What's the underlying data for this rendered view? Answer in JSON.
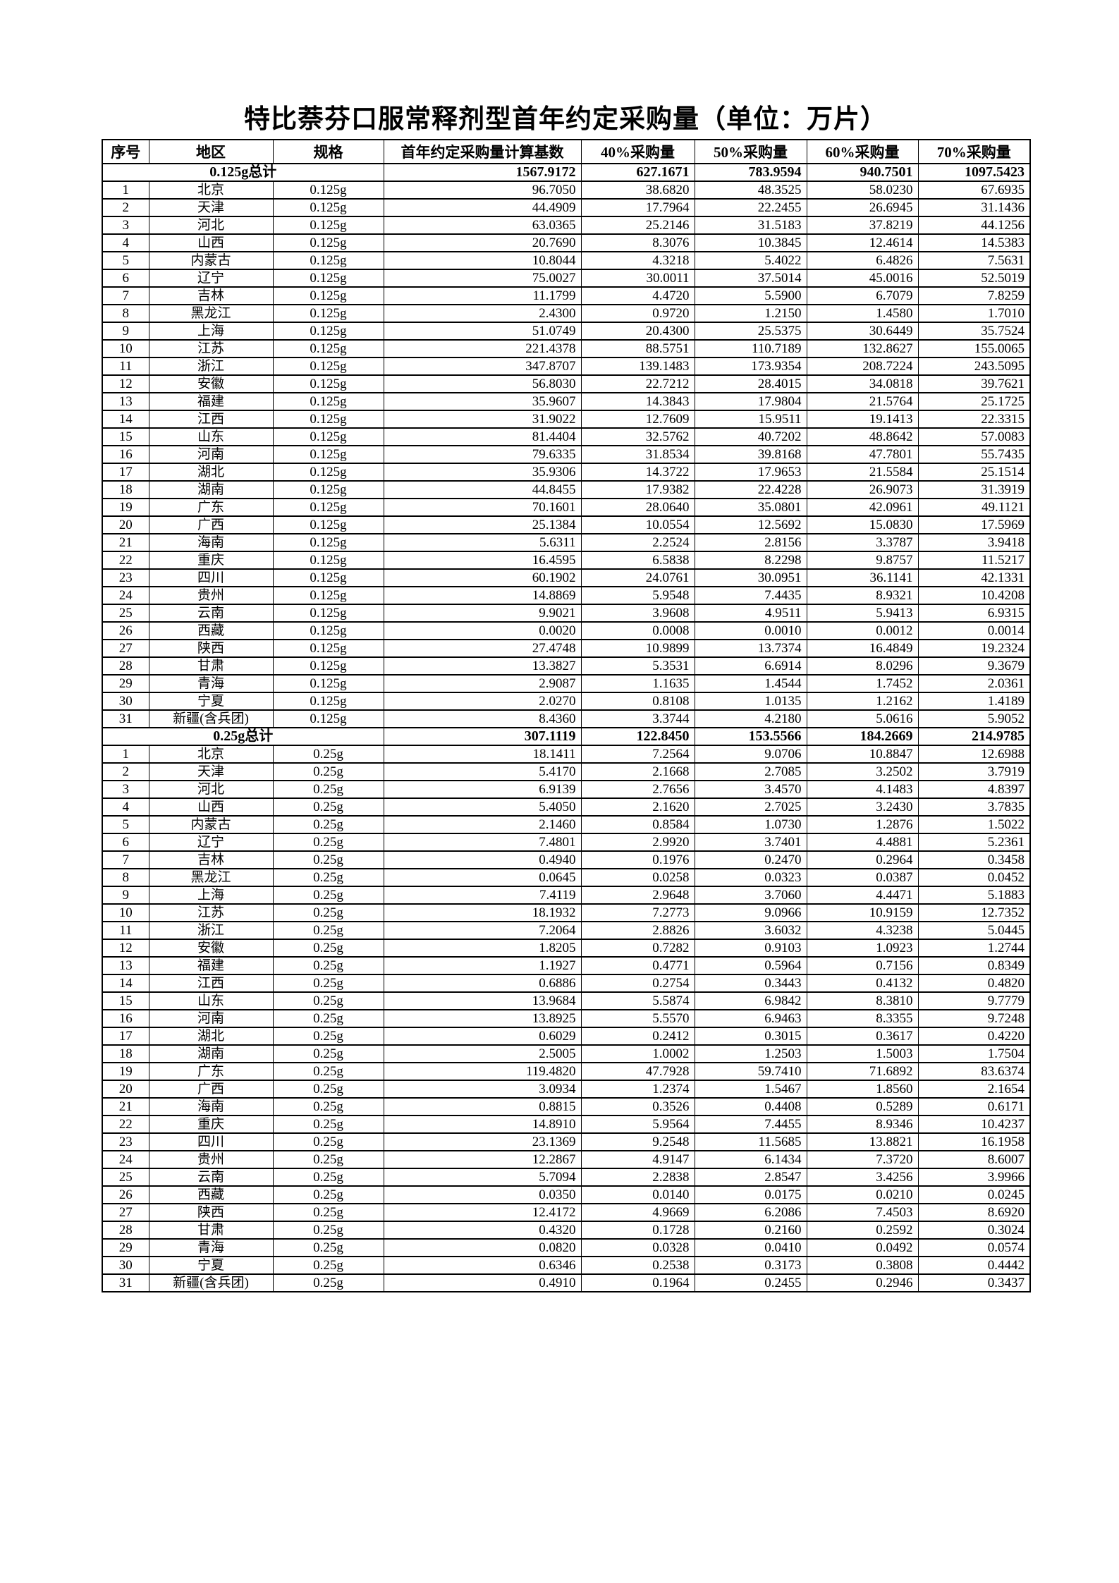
{
  "title": "特比萘芬口服常释剂型首年约定采购量（单位：万片）",
  "table": {
    "columns": [
      "序号",
      "地区",
      "规格",
      "首年约定采购量计算基数",
      "40%采购量",
      "50%采购量",
      "60%采购量",
      "70%采购量"
    ],
    "sections": [
      {
        "summary_label": "0.125g总计",
        "summary_values": [
          "1567.9172",
          "627.1671",
          "783.9594",
          "940.7501",
          "1097.5423"
        ],
        "rows": [
          [
            "1",
            "北京",
            "0.125g",
            "96.7050",
            "38.6820",
            "48.3525",
            "58.0230",
            "67.6935"
          ],
          [
            "2",
            "天津",
            "0.125g",
            "44.4909",
            "17.7964",
            "22.2455",
            "26.6945",
            "31.1436"
          ],
          [
            "3",
            "河北",
            "0.125g",
            "63.0365",
            "25.2146",
            "31.5183",
            "37.8219",
            "44.1256"
          ],
          [
            "4",
            "山西",
            "0.125g",
            "20.7690",
            "8.3076",
            "10.3845",
            "12.4614",
            "14.5383"
          ],
          [
            "5",
            "内蒙古",
            "0.125g",
            "10.8044",
            "4.3218",
            "5.4022",
            "6.4826",
            "7.5631"
          ],
          [
            "6",
            "辽宁",
            "0.125g",
            "75.0027",
            "30.0011",
            "37.5014",
            "45.0016",
            "52.5019"
          ],
          [
            "7",
            "吉林",
            "0.125g",
            "11.1799",
            "4.4720",
            "5.5900",
            "6.7079",
            "7.8259"
          ],
          [
            "8",
            "黑龙江",
            "0.125g",
            "2.4300",
            "0.9720",
            "1.2150",
            "1.4580",
            "1.7010"
          ],
          [
            "9",
            "上海",
            "0.125g",
            "51.0749",
            "20.4300",
            "25.5375",
            "30.6449",
            "35.7524"
          ],
          [
            "10",
            "江苏",
            "0.125g",
            "221.4378",
            "88.5751",
            "110.7189",
            "132.8627",
            "155.0065"
          ],
          [
            "11",
            "浙江",
            "0.125g",
            "347.8707",
            "139.1483",
            "173.9354",
            "208.7224",
            "243.5095"
          ],
          [
            "12",
            "安徽",
            "0.125g",
            "56.8030",
            "22.7212",
            "28.4015",
            "34.0818",
            "39.7621"
          ],
          [
            "13",
            "福建",
            "0.125g",
            "35.9607",
            "14.3843",
            "17.9804",
            "21.5764",
            "25.1725"
          ],
          [
            "14",
            "江西",
            "0.125g",
            "31.9022",
            "12.7609",
            "15.9511",
            "19.1413",
            "22.3315"
          ],
          [
            "15",
            "山东",
            "0.125g",
            "81.4404",
            "32.5762",
            "40.7202",
            "48.8642",
            "57.0083"
          ],
          [
            "16",
            "河南",
            "0.125g",
            "79.6335",
            "31.8534",
            "39.8168",
            "47.7801",
            "55.7435"
          ],
          [
            "17",
            "湖北",
            "0.125g",
            "35.9306",
            "14.3722",
            "17.9653",
            "21.5584",
            "25.1514"
          ],
          [
            "18",
            "湖南",
            "0.125g",
            "44.8455",
            "17.9382",
            "22.4228",
            "26.9073",
            "31.3919"
          ],
          [
            "19",
            "广东",
            "0.125g",
            "70.1601",
            "28.0640",
            "35.0801",
            "42.0961",
            "49.1121"
          ],
          [
            "20",
            "广西",
            "0.125g",
            "25.1384",
            "10.0554",
            "12.5692",
            "15.0830",
            "17.5969"
          ],
          [
            "21",
            "海南",
            "0.125g",
            "5.6311",
            "2.2524",
            "2.8156",
            "3.3787",
            "3.9418"
          ],
          [
            "22",
            "重庆",
            "0.125g",
            "16.4595",
            "6.5838",
            "8.2298",
            "9.8757",
            "11.5217"
          ],
          [
            "23",
            "四川",
            "0.125g",
            "60.1902",
            "24.0761",
            "30.0951",
            "36.1141",
            "42.1331"
          ],
          [
            "24",
            "贵州",
            "0.125g",
            "14.8869",
            "5.9548",
            "7.4435",
            "8.9321",
            "10.4208"
          ],
          [
            "25",
            "云南",
            "0.125g",
            "9.9021",
            "3.9608",
            "4.9511",
            "5.9413",
            "6.9315"
          ],
          [
            "26",
            "西藏",
            "0.125g",
            "0.0020",
            "0.0008",
            "0.0010",
            "0.0012",
            "0.0014"
          ],
          [
            "27",
            "陕西",
            "0.125g",
            "27.4748",
            "10.9899",
            "13.7374",
            "16.4849",
            "19.2324"
          ],
          [
            "28",
            "甘肃",
            "0.125g",
            "13.3827",
            "5.3531",
            "6.6914",
            "8.0296",
            "9.3679"
          ],
          [
            "29",
            "青海",
            "0.125g",
            "2.9087",
            "1.1635",
            "1.4544",
            "1.7452",
            "2.0361"
          ],
          [
            "30",
            "宁夏",
            "0.125g",
            "2.0270",
            "0.8108",
            "1.0135",
            "1.2162",
            "1.4189"
          ],
          [
            "31",
            "新疆(含兵团)",
            "0.125g",
            "8.4360",
            "3.3744",
            "4.2180",
            "5.0616",
            "5.9052"
          ]
        ]
      },
      {
        "summary_label": "0.25g总计",
        "summary_values": [
          "307.1119",
          "122.8450",
          "153.5566",
          "184.2669",
          "214.9785"
        ],
        "rows": [
          [
            "1",
            "北京",
            "0.25g",
            "18.1411",
            "7.2564",
            "9.0706",
            "10.8847",
            "12.6988"
          ],
          [
            "2",
            "天津",
            "0.25g",
            "5.4170",
            "2.1668",
            "2.7085",
            "3.2502",
            "3.7919"
          ],
          [
            "3",
            "河北",
            "0.25g",
            "6.9139",
            "2.7656",
            "3.4570",
            "4.1483",
            "4.8397"
          ],
          [
            "4",
            "山西",
            "0.25g",
            "5.4050",
            "2.1620",
            "2.7025",
            "3.2430",
            "3.7835"
          ],
          [
            "5",
            "内蒙古",
            "0.25g",
            "2.1460",
            "0.8584",
            "1.0730",
            "1.2876",
            "1.5022"
          ],
          [
            "6",
            "辽宁",
            "0.25g",
            "7.4801",
            "2.9920",
            "3.7401",
            "4.4881",
            "5.2361"
          ],
          [
            "7",
            "吉林",
            "0.25g",
            "0.4940",
            "0.1976",
            "0.2470",
            "0.2964",
            "0.3458"
          ],
          [
            "8",
            "黑龙江",
            "0.25g",
            "0.0645",
            "0.0258",
            "0.0323",
            "0.0387",
            "0.0452"
          ],
          [
            "9",
            "上海",
            "0.25g",
            "7.4119",
            "2.9648",
            "3.7060",
            "4.4471",
            "5.1883"
          ],
          [
            "10",
            "江苏",
            "0.25g",
            "18.1932",
            "7.2773",
            "9.0966",
            "10.9159",
            "12.7352"
          ],
          [
            "11",
            "浙江",
            "0.25g",
            "7.2064",
            "2.8826",
            "3.6032",
            "4.3238",
            "5.0445"
          ],
          [
            "12",
            "安徽",
            "0.25g",
            "1.8205",
            "0.7282",
            "0.9103",
            "1.0923",
            "1.2744"
          ],
          [
            "13",
            "福建",
            "0.25g",
            "1.1927",
            "0.4771",
            "0.5964",
            "0.7156",
            "0.8349"
          ],
          [
            "14",
            "江西",
            "0.25g",
            "0.6886",
            "0.2754",
            "0.3443",
            "0.4132",
            "0.4820"
          ],
          [
            "15",
            "山东",
            "0.25g",
            "13.9684",
            "5.5874",
            "6.9842",
            "8.3810",
            "9.7779"
          ],
          [
            "16",
            "河南",
            "0.25g",
            "13.8925",
            "5.5570",
            "6.9463",
            "8.3355",
            "9.7248"
          ],
          [
            "17",
            "湖北",
            "0.25g",
            "0.6029",
            "0.2412",
            "0.3015",
            "0.3617",
            "0.4220"
          ],
          [
            "18",
            "湖南",
            "0.25g",
            "2.5005",
            "1.0002",
            "1.2503",
            "1.5003",
            "1.7504"
          ],
          [
            "19",
            "广东",
            "0.25g",
            "119.4820",
            "47.7928",
            "59.7410",
            "71.6892",
            "83.6374"
          ],
          [
            "20",
            "广西",
            "0.25g",
            "3.0934",
            "1.2374",
            "1.5467",
            "1.8560",
            "2.1654"
          ],
          [
            "21",
            "海南",
            "0.25g",
            "0.8815",
            "0.3526",
            "0.4408",
            "0.5289",
            "0.6171"
          ],
          [
            "22",
            "重庆",
            "0.25g",
            "14.8910",
            "5.9564",
            "7.4455",
            "8.9346",
            "10.4237"
          ],
          [
            "23",
            "四川",
            "0.25g",
            "23.1369",
            "9.2548",
            "11.5685",
            "13.8821",
            "16.1958"
          ],
          [
            "24",
            "贵州",
            "0.25g",
            "12.2867",
            "4.9147",
            "6.1434",
            "7.3720",
            "8.6007"
          ],
          [
            "25",
            "云南",
            "0.25g",
            "5.7094",
            "2.2838",
            "2.8547",
            "3.4256",
            "3.9966"
          ],
          [
            "26",
            "西藏",
            "0.25g",
            "0.0350",
            "0.0140",
            "0.0175",
            "0.0210",
            "0.0245"
          ],
          [
            "27",
            "陕西",
            "0.25g",
            "12.4172",
            "4.9669",
            "6.2086",
            "7.4503",
            "8.6920"
          ],
          [
            "28",
            "甘肃",
            "0.25g",
            "0.4320",
            "0.1728",
            "0.2160",
            "0.2592",
            "0.3024"
          ],
          [
            "29",
            "青海",
            "0.25g",
            "0.0820",
            "0.0328",
            "0.0410",
            "0.0492",
            "0.0574"
          ],
          [
            "30",
            "宁夏",
            "0.25g",
            "0.6346",
            "0.2538",
            "0.3173",
            "0.3808",
            "0.4442"
          ],
          [
            "31",
            "新疆(含兵团)",
            "0.25g",
            "0.4910",
            "0.1964",
            "0.2455",
            "0.2946",
            "0.3437"
          ]
        ]
      }
    ]
  }
}
